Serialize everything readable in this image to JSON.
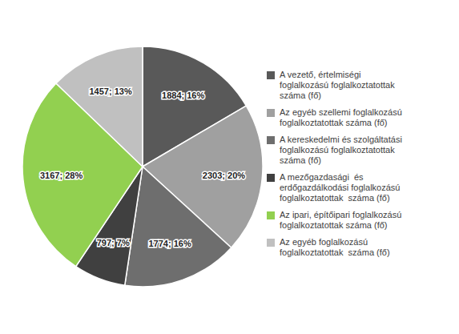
{
  "chart_data": {
    "type": "pie",
    "categories": [
      "A vezető, értelmiségi\nfoglalkozású foglalkoztatottak\nszáma (fő)",
      "Az egyéb szellemi foglalkozású\nfoglalkoztatottak száma (fő)",
      "A kereskedelmi és szolgáltatási\nfoglalkozású foglalkoztatottak\nszáma (fő)",
      "A mezőgazdasági  és\nerdőgazdálkodási foglalkozású\nfoglalkoztatottak  száma (fő)",
      "Az ipari, építőipari foglalkozású\nfoglalkoztatottak száma (fő)",
      "Az egyéb foglalkozású\nfoglalkoztatottak  száma (fő)"
    ],
    "values": [
      1884,
      2303,
      1774,
      797,
      3167,
      1457
    ],
    "value_labels": [
      "1884; 16%",
      "2303; 20%",
      "1774; 16%",
      "797; 7%",
      "3167; 28%",
      "1457; 13%"
    ],
    "colors": [
      "#595959",
      "#A0A0A0",
      "#6E6E6E",
      "#404040",
      "#92D050",
      "#C0C0C0"
    ],
    "legend": "right"
  }
}
